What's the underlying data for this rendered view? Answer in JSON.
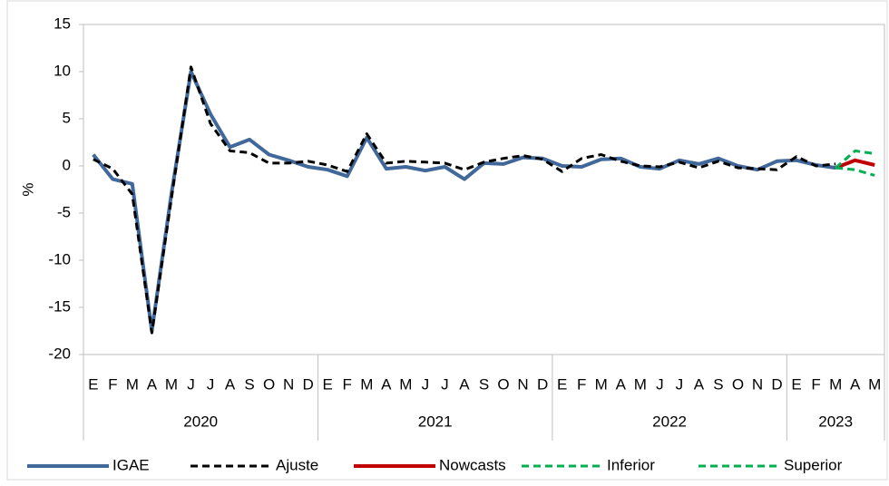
{
  "chart_data": {
    "type": "line",
    "y_label": "%",
    "groups": [
      {
        "label": "2020",
        "categories": [
          "E",
          "F",
          "M",
          "A",
          "M",
          "J",
          "J",
          "A",
          "S",
          "O",
          "N",
          "D"
        ]
      },
      {
        "label": "2021",
        "categories": [
          "E",
          "F",
          "M",
          "A",
          "M",
          "J",
          "J",
          "A",
          "S",
          "O",
          "N",
          "D"
        ]
      },
      {
        "label": "2022",
        "categories": [
          "E",
          "F",
          "M",
          "A",
          "M",
          "J",
          "J",
          "A",
          "S",
          "O",
          "N",
          "D"
        ]
      },
      {
        "label": "2023",
        "categories": [
          "E",
          "F",
          "M",
          "A",
          "M"
        ]
      }
    ],
    "ylim": [
      -20,
      15
    ],
    "yticks": [
      -20,
      -15,
      -10,
      -5,
      0,
      5,
      10,
      15
    ],
    "series": [
      {
        "name": "IGAE",
        "color": "#41689a",
        "dash": "solid",
        "width": 4,
        "values": [
          1.2,
          -1.4,
          -1.9,
          -17.5,
          -3.0,
          10.0,
          5.5,
          2.0,
          2.8,
          1.2,
          0.6,
          -0.1,
          -0.4,
          -1.1,
          3.0,
          -0.3,
          -0.1,
          -0.5,
          -0.1,
          -1.4,
          0.3,
          0.2,
          0.9,
          0.8,
          0.0,
          -0.1,
          0.7,
          0.8,
          -0.1,
          -0.3,
          0.6,
          0.2,
          0.8,
          0.0,
          -0.4,
          0.5,
          0.6,
          0.1,
          -0.2,
          null,
          null
        ]
      },
      {
        "name": "Ajuste",
        "color": "#000000",
        "dash": "dashed",
        "width": 3,
        "values": [
          0.7,
          -0.3,
          -3.0,
          -17.7,
          -3.5,
          10.5,
          4.5,
          1.6,
          1.4,
          0.3,
          0.3,
          0.5,
          0.1,
          -0.6,
          3.4,
          0.3,
          0.5,
          0.4,
          0.3,
          -0.4,
          0.4,
          0.8,
          1.1,
          0.7,
          -0.6,
          0.8,
          1.2,
          0.5,
          0.0,
          -0.1,
          0.4,
          -0.2,
          0.5,
          -0.2,
          -0.3,
          -0.4,
          1.0,
          0.0,
          0.2,
          null,
          null
        ]
      },
      {
        "name": "Nowcasts",
        "color": "#c00000",
        "dash": "solid",
        "width": 4,
        "values": [
          null,
          null,
          null,
          null,
          null,
          null,
          null,
          null,
          null,
          null,
          null,
          null,
          null,
          null,
          null,
          null,
          null,
          null,
          null,
          null,
          null,
          null,
          null,
          null,
          null,
          null,
          null,
          null,
          null,
          null,
          null,
          null,
          null,
          null,
          null,
          null,
          null,
          null,
          -0.2,
          0.6,
          0.1
        ]
      },
      {
        "name": "Inferior",
        "color": "#00b050",
        "dash": "dashed",
        "width": 3,
        "values": [
          null,
          null,
          null,
          null,
          null,
          null,
          null,
          null,
          null,
          null,
          null,
          null,
          null,
          null,
          null,
          null,
          null,
          null,
          null,
          null,
          null,
          null,
          null,
          null,
          null,
          null,
          null,
          null,
          null,
          null,
          null,
          null,
          null,
          null,
          null,
          null,
          null,
          null,
          -0.2,
          -0.4,
          -1.0
        ]
      },
      {
        "name": "Superior",
        "color": "#00b050",
        "dash": "dashed",
        "width": 3,
        "values": [
          null,
          null,
          null,
          null,
          null,
          null,
          null,
          null,
          null,
          null,
          null,
          null,
          null,
          null,
          null,
          null,
          null,
          null,
          null,
          null,
          null,
          null,
          null,
          null,
          null,
          null,
          null,
          null,
          null,
          null,
          null,
          null,
          null,
          null,
          null,
          null,
          null,
          null,
          -0.2,
          1.6,
          1.3
        ]
      }
    ]
  }
}
